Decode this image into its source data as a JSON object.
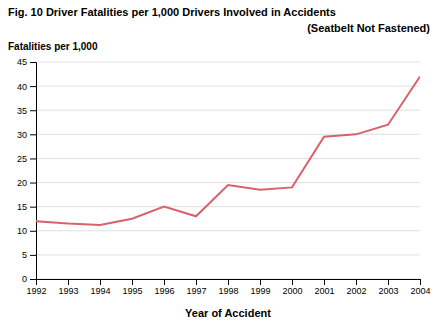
{
  "chart_data": {
    "type": "line",
    "title": "Fig. 10  Driver Fatalities per 1,000 Drivers Involved in Accidents",
    "subtitle": "(Seatbelt Not Fastened)",
    "y_label": "Fatalities per 1,000",
    "x_label": "Year of Accident",
    "x": [
      1992,
      1993,
      1994,
      1995,
      1996,
      1997,
      1998,
      1999,
      2000,
      2001,
      2002,
      2003,
      2004
    ],
    "values": [
      12.0,
      11.5,
      11.2,
      12.5,
      15.0,
      13.0,
      19.5,
      18.5,
      19.0,
      29.5,
      30.0,
      32.0,
      42.0
    ],
    "color": "#d9626a",
    "xlim": [
      1992,
      2004
    ],
    "xticks": [
      1992,
      1993,
      1994,
      1995,
      1996,
      1997,
      1998,
      1999,
      2000,
      2001,
      2002,
      2003,
      2004
    ],
    "ylim": [
      0,
      45
    ],
    "yticks": [
      0,
      5,
      10,
      15,
      20,
      25,
      30,
      35,
      40,
      45
    ],
    "grid": true
  }
}
